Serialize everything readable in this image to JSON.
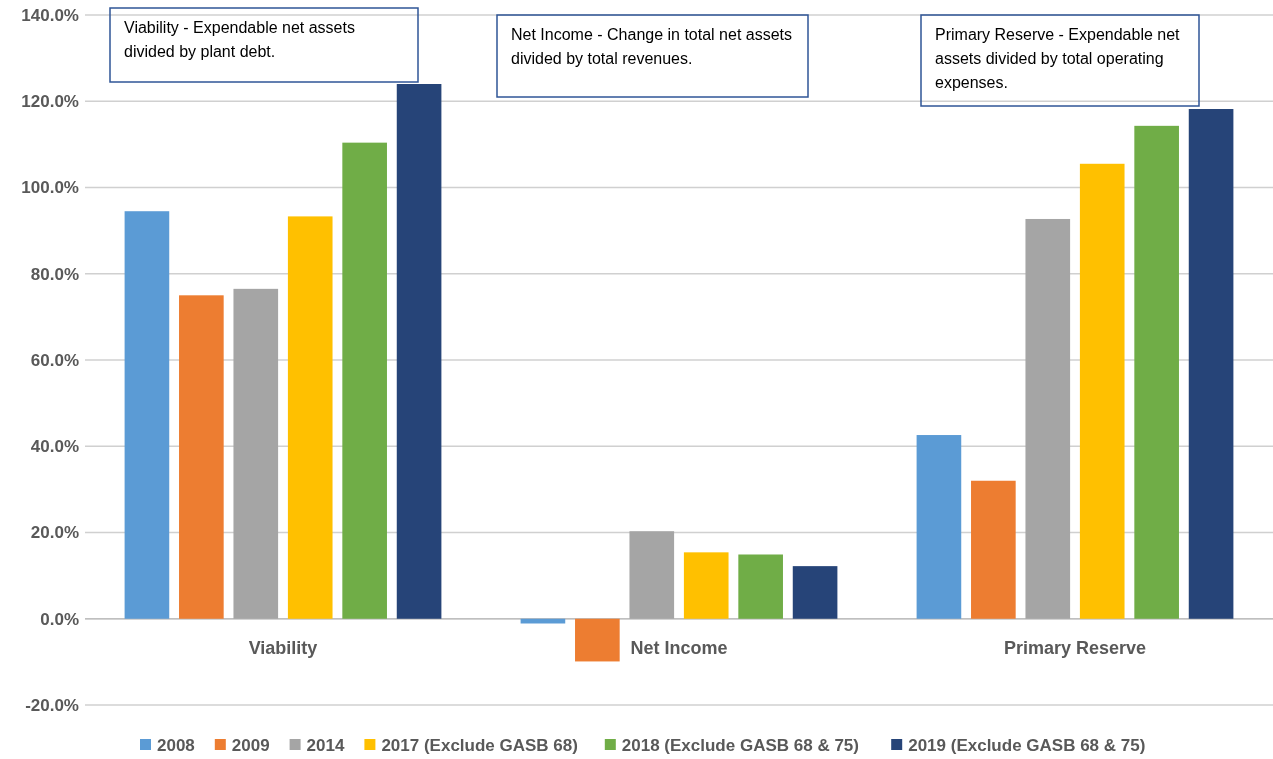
{
  "chart_data": {
    "type": "bar",
    "categories": [
      "Viability",
      "Net Income",
      "Primary Reserve"
    ],
    "series": [
      {
        "name": "2008",
        "color": "#5b9bd5",
        "values": [
          94.5,
          -1.1,
          42.6
        ]
      },
      {
        "name": "2009",
        "color": "#ed7d31",
        "values": [
          75.0,
          -9.9,
          32.0
        ]
      },
      {
        "name": "2014",
        "color": "#a5a5a5",
        "values": [
          76.5,
          20.3,
          92.7
        ]
      },
      {
        "name": "2017 (Exclude GASB 68)",
        "color": "#ffc000",
        "values": [
          93.3,
          15.4,
          105.5
        ]
      },
      {
        "name": "2018 (Exclude GASB 68 & 75)",
        "color": "#70ad47",
        "values": [
          110.4,
          14.9,
          114.3
        ]
      },
      {
        "name": "2019 (Exclude GASB 68 & 75)",
        "color": "#264478",
        "values": [
          124.0,
          12.2,
          118.2
        ]
      }
    ],
    "ylim": [
      -20,
      140
    ],
    "yticks": [
      {
        "value": -20,
        "label": "-20.0%"
      },
      {
        "value": 0,
        "label": "0.0%"
      },
      {
        "value": 20,
        "label": "20.0%"
      },
      {
        "value": 40,
        "label": "40.0%"
      },
      {
        "value": 60,
        "label": "60.0%"
      },
      {
        "value": 80,
        "label": "80.0%"
      },
      {
        "value": 100,
        "label": "100.0%"
      },
      {
        "value": 120,
        "label": "120.0%"
      },
      {
        "value": 140,
        "label": "140.0%"
      }
    ],
    "grid": "y",
    "legend": "bottom",
    "annotations": [
      "Viability - Expendable net assets divided by plant debt.",
      "Net Income - Change in total net assets divided by total revenues.",
      "Primary Reserve - Expendable net assets divided by total operating expenses."
    ]
  }
}
